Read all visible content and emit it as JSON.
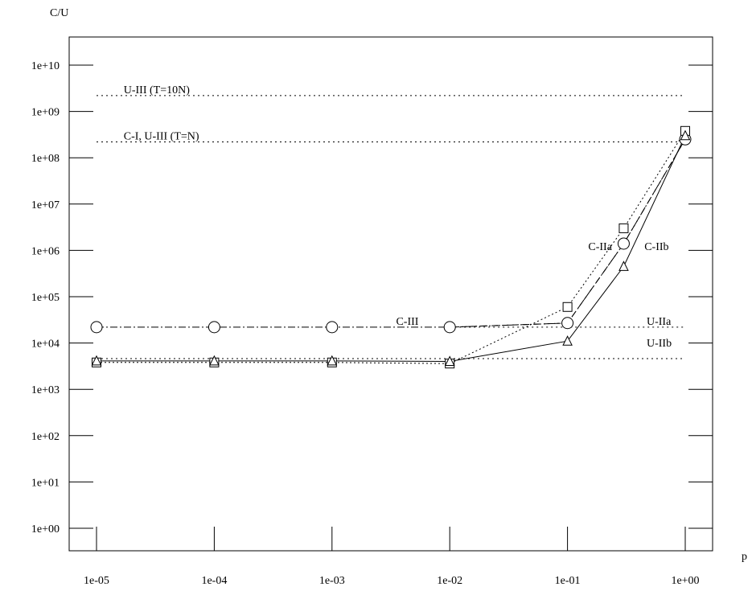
{
  "chart_data": {
    "type": "line",
    "title": "",
    "xlabel": "p",
    "ylabel": "C/U",
    "x_scale": "log",
    "y_scale": "log",
    "xlim": [
      1e-05,
      1
    ],
    "ylim": [
      1,
      10000000000
    ],
    "grid": false,
    "x_ticks": [
      "1e-05",
      "1e-04",
      "1e-03",
      "1e-02",
      "1e-01",
      "1e+00"
    ],
    "y_ticks": [
      "1e+00",
      "1e+01",
      "1e+02",
      "1e+03",
      "1e+04",
      "1e+05",
      "1e+06",
      "1e+07",
      "1e+08",
      "1e+09",
      "1e+10"
    ],
    "series": [
      {
        "line": "dashdot",
        "marker": "circle",
        "points": [
          [
            1e-05,
            22000
          ],
          [
            0.0001,
            22000
          ],
          [
            0.001,
            22000
          ],
          [
            0.01,
            22000
          ],
          [
            0.1,
            27000
          ],
          [
            0.3,
            1400000
          ],
          [
            1,
            250000000
          ]
        ]
      },
      {
        "line": "dotted",
        "marker": "square",
        "points": [
          [
            1e-05,
            3800
          ],
          [
            0.0001,
            3800
          ],
          [
            0.001,
            3800
          ],
          [
            0.01,
            3600
          ],
          [
            0.1,
            60000
          ],
          [
            0.3,
            3000000
          ],
          [
            1,
            380000000
          ]
        ]
      },
      {
        "line": "solid",
        "marker": "triangle",
        "points": [
          [
            1e-05,
            4100
          ],
          [
            0.0001,
            4100
          ],
          [
            0.001,
            4100
          ],
          [
            0.01,
            4000
          ],
          [
            0.1,
            11000
          ],
          [
            0.3,
            450000
          ],
          [
            1,
            300000000
          ]
        ]
      },
      {
        "line": "dashed",
        "marker": "none",
        "points": [
          [
            0.01,
            22000
          ],
          [
            0.1,
            27000
          ],
          [
            0.3,
            1400000
          ],
          [
            1,
            250000000
          ]
        ]
      }
    ],
    "reference_lines": [
      {
        "y": 2200000000,
        "x_from": 1e-05,
        "x_to": 1
      },
      {
        "y": 220000000,
        "x_from": 1e-05,
        "x_to": 1
      },
      {
        "y": 22000,
        "x_from": 0.01,
        "x_to": 1
      },
      {
        "y": 4600,
        "x_from": 1e-05,
        "x_to": 1
      }
    ],
    "annotations": [
      {
        "text": "U-III (T=10N)",
        "x": 1.7e-05,
        "y": 2200000000
      },
      {
        "text": "C-I, U-III (T=N)",
        "x": 1.7e-05,
        "y": 220000000
      },
      {
        "text": "C-III",
        "x": 0.0035,
        "y": 22000
      },
      {
        "text": "C-IIa",
        "x": 0.15,
        "y": 900000
      },
      {
        "text": "C-IIb",
        "x": 0.45,
        "y": 900000
      },
      {
        "text": "U-IIa",
        "x": 0.47,
        "y": 22000
      },
      {
        "text": "U-IIb",
        "x": 0.47,
        "y": 7500
      }
    ]
  }
}
